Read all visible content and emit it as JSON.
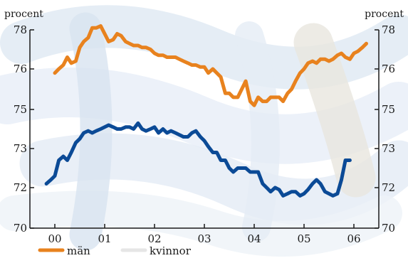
{
  "chart_data": {
    "type": "line",
    "ylabel_left": "procent",
    "ylabel_right": "procent",
    "x_ticks": [
      {
        "label": "00",
        "x": 2000.0
      },
      {
        "label": "01",
        "x": 2001.0
      },
      {
        "label": "02",
        "x": 2002.0
      },
      {
        "label": "03",
        "x": 2003.0
      },
      {
        "label": "04",
        "x": 2004.0
      },
      {
        "label": "05",
        "x": 2005.0
      },
      {
        "label": "06",
        "x": 2006.0
      }
    ],
    "xlim": [
      1999.5,
      2006.5
    ],
    "y_ticks": [
      {
        "label": "70",
        "value": 70
      },
      {
        "label": "72",
        "value": 72
      },
      {
        "label": "73",
        "value": 73
      },
      {
        "label": "75",
        "value": 75
      },
      {
        "label": "76",
        "value": 76
      },
      {
        "label": "78",
        "value": 78
      }
    ],
    "ylim": [
      70,
      78
    ],
    "legend_position": "bottom-left",
    "series": [
      {
        "name": "män",
        "color": "#e8821e",
        "points": [
          [
            2000.0,
            75.9
          ],
          [
            2000.08,
            76.0
          ],
          [
            2000.17,
            76.2
          ],
          [
            2000.25,
            76.6
          ],
          [
            2000.33,
            76.3
          ],
          [
            2000.42,
            76.4
          ],
          [
            2000.5,
            77.1
          ],
          [
            2000.58,
            77.4
          ],
          [
            2000.67,
            77.6
          ],
          [
            2000.75,
            78.1
          ],
          [
            2000.83,
            78.1
          ],
          [
            2000.92,
            78.2
          ],
          [
            2001.0,
            77.8
          ],
          [
            2001.08,
            77.4
          ],
          [
            2001.17,
            77.5
          ],
          [
            2001.25,
            77.8
          ],
          [
            2001.33,
            77.7
          ],
          [
            2001.42,
            77.4
          ],
          [
            2001.5,
            77.3
          ],
          [
            2001.58,
            77.2
          ],
          [
            2001.67,
            77.2
          ],
          [
            2001.75,
            77.1
          ],
          [
            2001.83,
            77.1
          ],
          [
            2001.92,
            77.0
          ],
          [
            2002.0,
            76.8
          ],
          [
            2002.08,
            76.7
          ],
          [
            2002.17,
            76.7
          ],
          [
            2002.25,
            76.6
          ],
          [
            2002.33,
            76.6
          ],
          [
            2002.42,
            76.6
          ],
          [
            2002.5,
            76.5
          ],
          [
            2002.58,
            76.4
          ],
          [
            2002.67,
            76.3
          ],
          [
            2002.75,
            76.2
          ],
          [
            2002.83,
            76.2
          ],
          [
            2002.92,
            76.1
          ],
          [
            2003.0,
            76.1
          ],
          [
            2003.08,
            75.9
          ],
          [
            2003.17,
            76.0
          ],
          [
            2003.25,
            75.9
          ],
          [
            2003.33,
            75.8
          ],
          [
            2003.42,
            75.4
          ],
          [
            2003.5,
            75.4
          ],
          [
            2003.58,
            75.3
          ],
          [
            2003.67,
            75.3
          ],
          [
            2003.75,
            75.5
          ],
          [
            2003.83,
            75.7
          ],
          [
            2003.92,
            75.2
          ],
          [
            2004.0,
            75.1
          ],
          [
            2004.08,
            75.3
          ],
          [
            2004.17,
            75.2
          ],
          [
            2004.25,
            75.2
          ],
          [
            2004.33,
            75.3
          ],
          [
            2004.42,
            75.3
          ],
          [
            2004.5,
            75.3
          ],
          [
            2004.58,
            75.2
          ],
          [
            2004.67,
            75.4
          ],
          [
            2004.75,
            75.5
          ],
          [
            2004.83,
            75.7
          ],
          [
            2004.92,
            75.9
          ],
          [
            2005.0,
            76.0
          ],
          [
            2005.08,
            76.3
          ],
          [
            2005.17,
            76.4
          ],
          [
            2005.25,
            76.3
          ],
          [
            2005.33,
            76.5
          ],
          [
            2005.42,
            76.5
          ],
          [
            2005.5,
            76.4
          ],
          [
            2005.58,
            76.5
          ],
          [
            2005.67,
            76.7
          ],
          [
            2005.75,
            76.8
          ],
          [
            2005.83,
            76.6
          ],
          [
            2005.92,
            76.5
          ],
          [
            2006.0,
            76.8
          ],
          [
            2006.08,
            76.9
          ],
          [
            2006.17,
            77.1
          ],
          [
            2006.25,
            77.3
          ]
        ]
      },
      {
        "name": "kvinnor",
        "color": "#0b4a96",
        "points": [
          [
            1999.83,
            72.1
          ],
          [
            1999.92,
            72.2
          ],
          [
            2000.0,
            72.3
          ],
          [
            2000.08,
            72.7
          ],
          [
            2000.17,
            72.8
          ],
          [
            2000.25,
            72.7
          ],
          [
            2000.33,
            72.9
          ],
          [
            2000.42,
            73.3
          ],
          [
            2000.5,
            73.5
          ],
          [
            2000.58,
            73.8
          ],
          [
            2000.67,
            73.9
          ],
          [
            2000.75,
            73.8
          ],
          [
            2000.83,
            73.9
          ],
          [
            2000.92,
            74.0
          ],
          [
            2001.0,
            74.1
          ],
          [
            2001.08,
            74.2
          ],
          [
            2001.17,
            74.1
          ],
          [
            2001.25,
            74.0
          ],
          [
            2001.33,
            74.0
          ],
          [
            2001.42,
            74.1
          ],
          [
            2001.5,
            74.1
          ],
          [
            2001.58,
            74.0
          ],
          [
            2001.67,
            74.3
          ],
          [
            2001.75,
            74.0
          ],
          [
            2001.83,
            73.9
          ],
          [
            2001.92,
            74.0
          ],
          [
            2002.0,
            74.1
          ],
          [
            2002.08,
            73.8
          ],
          [
            2002.17,
            74.0
          ],
          [
            2002.25,
            73.8
          ],
          [
            2002.33,
            73.9
          ],
          [
            2002.42,
            73.8
          ],
          [
            2002.5,
            73.7
          ],
          [
            2002.58,
            73.6
          ],
          [
            2002.67,
            73.6
          ],
          [
            2002.75,
            73.8
          ],
          [
            2002.83,
            73.9
          ],
          [
            2002.92,
            73.6
          ],
          [
            2003.0,
            73.4
          ],
          [
            2003.08,
            73.1
          ],
          [
            2003.17,
            72.9
          ],
          [
            2003.25,
            72.9
          ],
          [
            2003.33,
            72.7
          ],
          [
            2003.42,
            72.7
          ],
          [
            2003.5,
            72.5
          ],
          [
            2003.58,
            72.4
          ],
          [
            2003.67,
            72.5
          ],
          [
            2003.75,
            72.5
          ],
          [
            2003.83,
            72.5
          ],
          [
            2003.92,
            72.4
          ],
          [
            2004.0,
            72.4
          ],
          [
            2004.08,
            72.4
          ],
          [
            2004.17,
            72.1
          ],
          [
            2004.25,
            72.0
          ],
          [
            2004.33,
            71.8
          ],
          [
            2004.42,
            72.0
          ],
          [
            2004.5,
            71.9
          ],
          [
            2004.58,
            71.6
          ],
          [
            2004.67,
            71.7
          ],
          [
            2004.75,
            71.8
          ],
          [
            2004.83,
            71.8
          ],
          [
            2004.92,
            71.6
          ],
          [
            2005.0,
            71.7
          ],
          [
            2005.08,
            71.9
          ],
          [
            2005.17,
            72.1
          ],
          [
            2005.25,
            72.2
          ],
          [
            2005.33,
            72.1
          ],
          [
            2005.42,
            71.8
          ],
          [
            2005.5,
            71.7
          ],
          [
            2005.58,
            71.6
          ],
          [
            2005.67,
            71.7
          ],
          [
            2005.75,
            72.2
          ],
          [
            2005.83,
            72.7
          ],
          [
            2005.92,
            72.7
          ]
        ]
      }
    ]
  }
}
